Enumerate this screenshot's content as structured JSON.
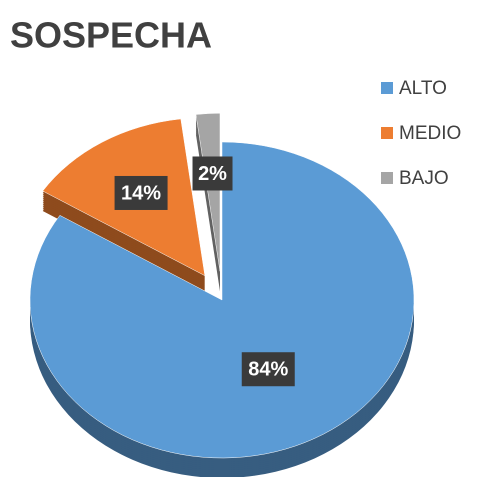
{
  "chart_data": {
    "type": "pie",
    "title": "SOSPECHA",
    "categories": [
      "ALTO",
      "MEDIO",
      "BAJO"
    ],
    "values": [
      84,
      14,
      2
    ],
    "value_labels": [
      "84%",
      "14%",
      "2%"
    ],
    "colors": [
      "#5b9bd5",
      "#ed7d31",
      "#a5a5a5"
    ],
    "legend": "top-right"
  }
}
